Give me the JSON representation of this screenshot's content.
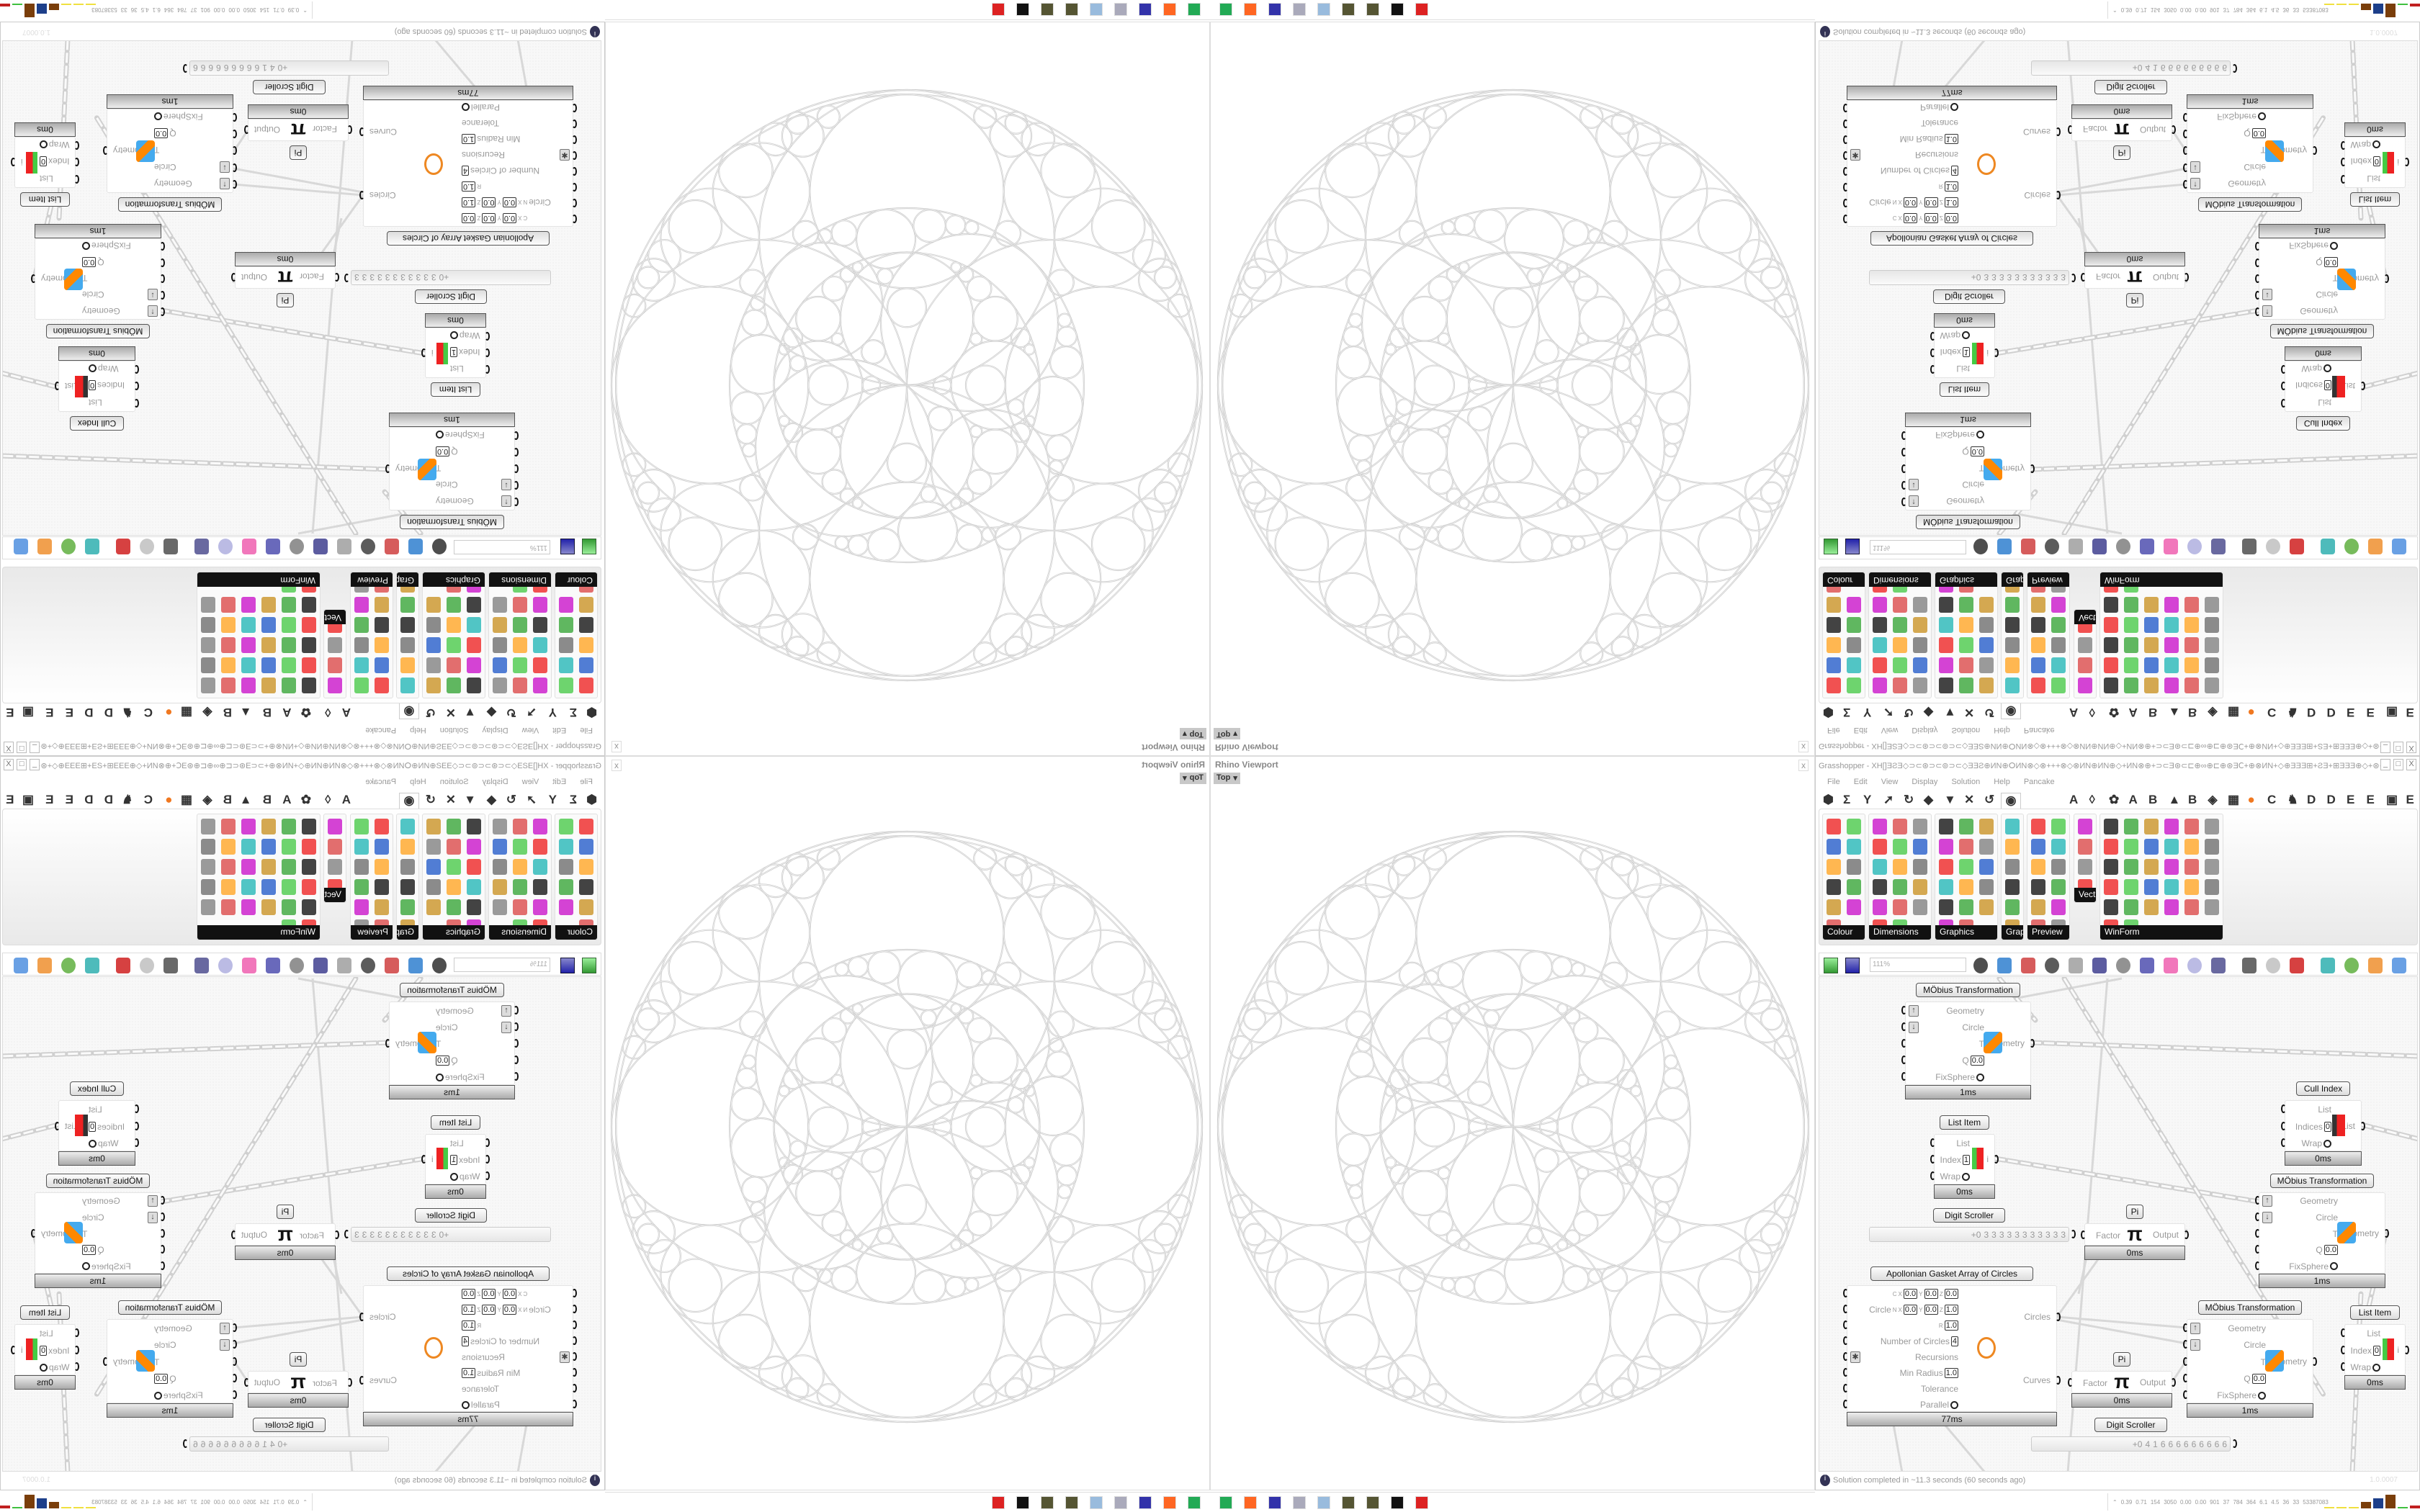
{
  "viewport": {
    "title": "Rhino Viewport",
    "view": "Top",
    "view_dropdown": "▾",
    "close": "x"
  },
  "taskbar": {
    "icons": [
      "monitor-app",
      "firefox",
      "floppy-64",
      "file-cabinet",
      "notepad",
      "pinecone",
      "pinecone-dark",
      "rhino",
      "red-badge"
    ]
  },
  "grasshopper": {
    "title": "Grasshopper - XH[]ƎƧƎ◇⊃⊂⊛⊃⊂⊚⊃⊂◇ƎƎƧ⊕ИN⊕ⵔИN⊗◇⊗+++⊗◇⊗ИN⊕ИN⊕◇+ИN⊗⊕+⊃⊂Ǝ⊛⊂⊏⊕∞⊕⊏⊕⊛ƎⅭ+⊕⊗ИN+◇⊕ƎƎƎ⊞+ƧƎ+⊞ƎƎƎ⊕◇+⊛⊂⊏ƎƎ⊞++⊃⊂...",
    "window_buttons": [
      "_",
      "□",
      "X"
    ],
    "menu": [
      "File",
      "Edit",
      "View",
      "Display",
      "Solution",
      "Help",
      "Pancake"
    ],
    "tabs_left": [
      "⬢",
      "Σ",
      "Y",
      "➚",
      "↻",
      "◆",
      "▼",
      "✕",
      "↺"
    ],
    "tab_selected": "◉",
    "tabs_right": [
      "A",
      "◊",
      "✿",
      "A",
      "B",
      "▲",
      "B",
      "◈",
      "▦",
      "●",
      "C",
      "♞",
      "D",
      "D",
      "E",
      "E",
      "▣",
      "E"
    ],
    "ribbon_groups": [
      {
        "label": "Colour",
        "icons": [
          "colour-wheel",
          "gradient",
          "rgb-cube",
          "hue-cone",
          "cmy-cube",
          "hsl",
          "red-sphere",
          "hsv",
          "red-sphere-2",
          "spectrum",
          "swatch"
        ]
      },
      {
        "label": "Dimensions",
        "icons": [
          "tag-delete",
          "linear-dim",
          "angle-dim",
          "tag",
          "line-dim",
          "box-dim",
          "magenta-swatch",
          "ordinate",
          "arrow-dim",
          "grid",
          "angular",
          "slanted",
          "curve-dim",
          "point-dim",
          "select-dim",
          "line-dim-2",
          "warning"
        ]
      },
      {
        "label": "Graphics",
        "icons": [
          "circle",
          "text-circle",
          "eye",
          "dots",
          "text-t",
          "frame",
          "blur",
          "list",
          "asterisk",
          "ring",
          "link",
          "save-image",
          "sphere",
          "dotted-ring",
          "save-star",
          "shade",
          "globe"
        ]
      },
      {
        "label": "Grap...",
        "icons": [
          "histogram",
          "legend",
          "pie",
          "line-graph",
          "layers",
          "graph-2"
        ]
      },
      {
        "label": "Preview",
        "icons": [
          "egg",
          "camera",
          "sphere-cam",
          "landscape",
          "blobs",
          "heart-blue",
          "red-blobs",
          "heart-green",
          "gradient-diag",
          "hearts",
          "sl-script",
          "tree-image"
        ]
      },
      {
        "label": "Vect.",
        "icons": [
          "compare-vectors",
          "path",
          "red-arrows",
          "green-arrows"
        ]
      },
      {
        "label": "WinForm",
        "icons": [
          "label-a",
          "list-box",
          "text-lines",
          "label-tag",
          "chart",
          "toolbar",
          "hatched",
          "slider-box",
          "range",
          "grid-green",
          "pie-yellow",
          "panel-yellow",
          "checkbox",
          "text-block",
          "picture",
          "pie-chart",
          "person",
          "combo",
          "spinner",
          "3d-box",
          "split",
          "text-plus",
          "ok-button",
          "progress",
          "bar",
          "check-list",
          "green-panel",
          "calendar",
          "vslider",
          "battery",
          "bars",
          "arrow-bar"
        ]
      }
    ],
    "toolbar": {
      "zoom": "111%",
      "open": "open-file",
      "save": "save-file",
      "icons": [
        "zoom-extents",
        "preview-eye",
        "sketch-pen",
        "capsule",
        "at-sign",
        "gha",
        "document",
        "search-s",
        "box-question",
        "bulb",
        "cross-wire",
        "chess-pawn",
        "ring",
        "red-gem",
        "teal-twist",
        "green-eye",
        "orange-sphere",
        "blue-sphere"
      ]
    },
    "components": [
      {
        "type": "component",
        "title": "MÖbius Transformation",
        "icon": "mobius-icon",
        "inputs": [
          {
            "label": "Geometry",
            "flag": "↑"
          },
          {
            "label": "Circle",
            "flag": "↓"
          },
          {
            "label": "T"
          },
          {
            "label": "Q",
            "values": [
              [
                "",
                "0.0"
              ]
            ]
          },
          {
            "label": "FixSphere",
            "toggle": true
          }
        ],
        "outputs": [
          "Geometry"
        ],
        "time": "1ms"
      },
      {
        "type": "component",
        "title": "Cull Index",
        "icon": "cull-index-icon",
        "inputs": [
          {
            "label": "List"
          },
          {
            "label": "Indices",
            "values": [
              [
                "",
                "0"
              ]
            ]
          },
          {
            "label": "Wrap",
            "toggle": true
          }
        ],
        "outputs": [
          "List"
        ],
        "time": "0ms"
      },
      {
        "type": "component",
        "title": "List Item",
        "icon": "list-item-icon",
        "inputs": [
          {
            "label": "List"
          },
          {
            "label": "Index",
            "values": [
              [
                "",
                "1"
              ]
            ]
          },
          {
            "label": "Wrap",
            "toggle": true
          }
        ],
        "outputs": [
          "i"
        ],
        "time": "0ms"
      },
      {
        "type": "component",
        "title": "MÖbius Transformation",
        "icon": "mobius-icon",
        "inputs": [
          {
            "label": "Geometry",
            "flag": "↑"
          },
          {
            "label": "Circle",
            "flag": "↓"
          },
          {
            "label": "T"
          },
          {
            "label": "Q",
            "values": [
              [
                "",
                "0.0"
              ]
            ]
          },
          {
            "label": "FixSphere",
            "toggle": true
          }
        ],
        "outputs": [
          "Geometry"
        ],
        "time": "1ms"
      },
      {
        "type": "scroller",
        "title": "Digit Scroller",
        "digits": [
          "+0",
          "3",
          "3",
          "3",
          "3",
          "3",
          "3",
          "3",
          "3",
          "3",
          "3",
          "3"
        ]
      },
      {
        "type": "component",
        "title": "Pi",
        "icon": "pi-icon",
        "glyph": "π",
        "inputs": [
          {
            "label": "Factor"
          }
        ],
        "outputs": [
          "Output"
        ],
        "time": "0ms"
      },
      {
        "type": "component",
        "title": "Apollonian Gasket Array of Circles",
        "icon": "apollonian-icon",
        "inputs": [
          {
            "label": "",
            "tag": "C",
            "values": [
              [
                "X",
                "0.0"
              ],
              [
                "Y",
                "0.0"
              ],
              [
                "Z",
                "0.0"
              ]
            ]
          },
          {
            "label": "Circle",
            "tag": "N",
            "values": [
              [
                "X",
                "0.0"
              ],
              [
                "Y",
                "0.0"
              ],
              [
                "Z",
                "1.0"
              ]
            ]
          },
          {
            "label": "",
            "tag": "R",
            "values": [
              [
                "",
                "1.0"
              ]
            ]
          },
          {
            "label": "Number of Circles",
            "values": [
              [
                "",
                "4"
              ]
            ]
          },
          {
            "label": "Recursions",
            "flag": "✱"
          },
          {
            "label": "Min Radius",
            "values": [
              [
                "",
                "1.0"
              ]
            ]
          },
          {
            "label": "Tolerance"
          },
          {
            "label": "Parallel",
            "toggle": true
          }
        ],
        "outputs": [
          "Circles",
          "Curves"
        ],
        "time": "77ms"
      },
      {
        "type": "component",
        "title": "MÖbius Transformation",
        "icon": "mobius-icon",
        "inputs": [
          {
            "label": "Geometry",
            "flag": "↑"
          },
          {
            "label": "Circle",
            "flag": "↓"
          },
          {
            "label": "T"
          },
          {
            "label": "Q",
            "values": [
              [
                "",
                "0.0"
              ]
            ]
          },
          {
            "label": "FixSphere",
            "toggle": true
          }
        ],
        "outputs": [
          "Geometry"
        ],
        "time": "1ms"
      },
      {
        "type": "component",
        "title": "Pi",
        "icon": "pi-icon",
        "glyph": "π",
        "inputs": [
          {
            "label": "Factor"
          }
        ],
        "outputs": [
          "Output"
        ],
        "time": "0ms"
      },
      {
        "type": "component",
        "title": "List Item",
        "icon": "list-item-icon",
        "inputs": [
          {
            "label": "List"
          },
          {
            "label": "Index",
            "values": [
              [
                "",
                "0"
              ]
            ]
          },
          {
            "label": "Wrap",
            "toggle": true
          }
        ],
        "outputs": [
          "i"
        ],
        "time": "0ms"
      },
      {
        "type": "scroller",
        "title": "Digit Scroller",
        "digits": [
          "+0",
          "4",
          "1",
          "6",
          "6",
          "6",
          "6",
          "6",
          "6",
          "6",
          "6",
          "6"
        ]
      }
    ],
    "status": {
      "icon": "info-icon",
      "message": "Solution completed in ~11.3 seconds (60 seconds ago)",
      "version": "1.0.0007"
    },
    "perf": {
      "values": [
        "0.39",
        "0.71",
        "154",
        "3050",
        "0.00",
        "0.00",
        "901",
        "37",
        "784",
        "364",
        "6.1",
        "4.5",
        "36",
        "33",
        "53387083"
      ],
      "bar_colors": [
        "#f0e040",
        "#f0e040",
        "#f0e040",
        "#7a3e0a",
        "#1d3f8a",
        "#7a3e0a",
        "#40c040",
        "#c02020"
      ],
      "bar_levels": [
        0.05,
        0.05,
        0.05,
        0.45,
        0.7,
        0.95,
        0.08,
        0.2
      ]
    }
  },
  "colors": {
    "wire": "#d8d8d8",
    "gasket_stroke": "#c9c9c9",
    "ribbon_label_bg": "#111111",
    "accent_orange": "#f07820"
  }
}
